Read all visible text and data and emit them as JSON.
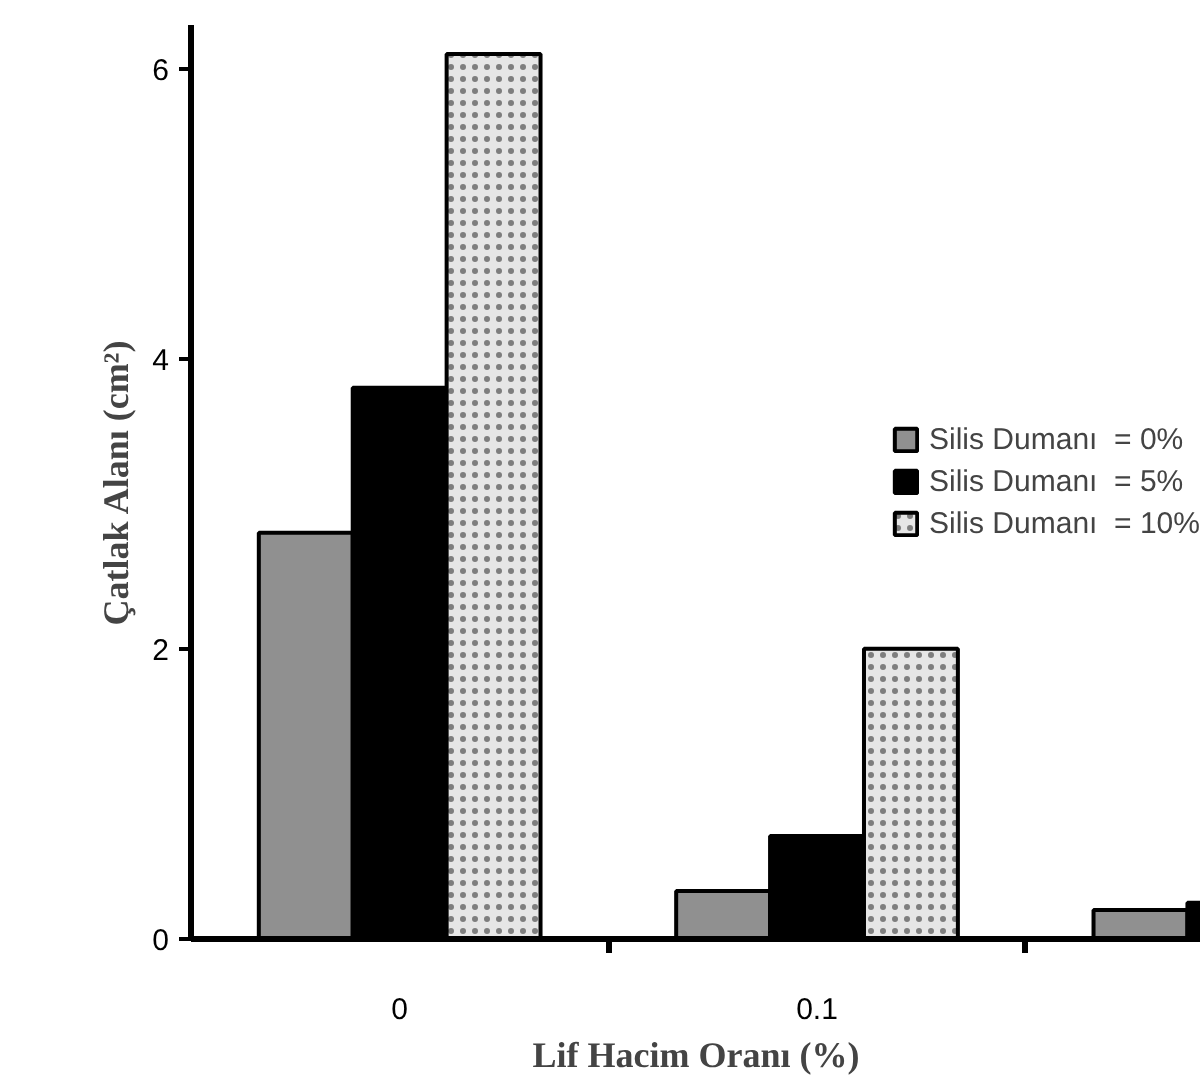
{
  "chart_data": {
    "type": "bar",
    "xlabel": "Lif Hacim Oranı (%)",
    "ylabel": "Çatlak Alanı (cm²)",
    "categories": [
      "0",
      "0.1",
      null
    ],
    "series": [
      {
        "name": "Silis Dumanı  = 0%",
        "color": "#909090",
        "values": [
          2.8,
          0.33,
          0.2
        ]
      },
      {
        "name": "Silis Dumanı  = 5%",
        "color": "#000000",
        "values": [
          3.8,
          0.71,
          0.25
        ]
      },
      {
        "name": "Silis Dumanı  = 10%",
        "color": "#e6e6e6",
        "values": [
          6.1,
          2.0,
          null
        ]
      }
    ],
    "ylim": [
      0,
      6.3
    ],
    "yticks": [
      0,
      2,
      4,
      6
    ],
    "grid": false,
    "legend": "right"
  }
}
